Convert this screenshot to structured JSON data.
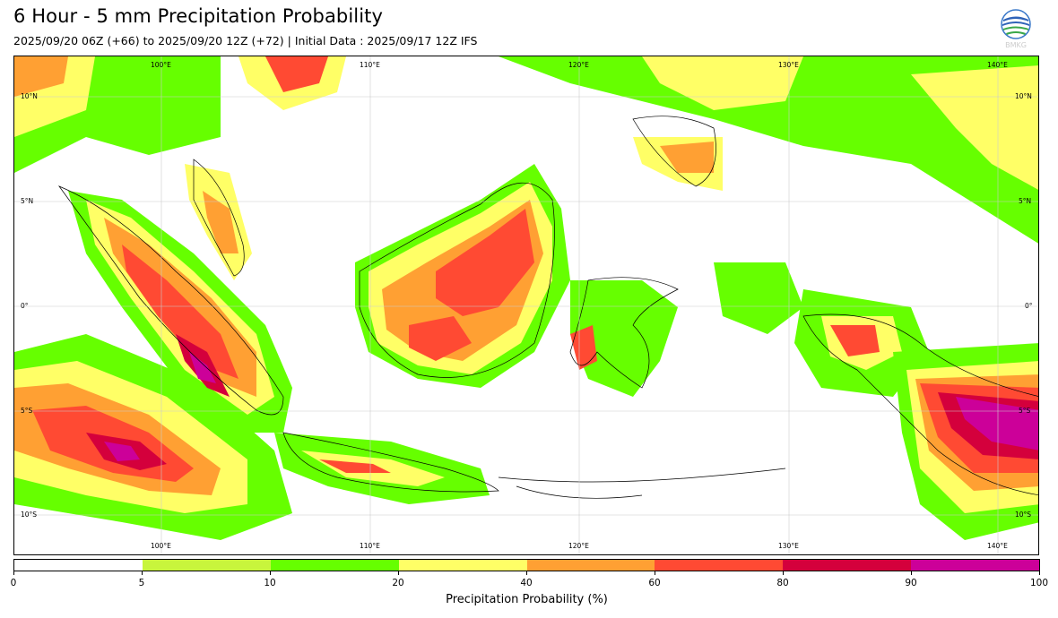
{
  "header": {
    "title": "6 Hour - 5 mm Precipitation Probability",
    "subtitle": "2025/09/20 06Z (+66) to 2025/09/20 12Z (+72) | Initial Data : 2025/09/17 12Z IFS",
    "logo_text": "BMKG"
  },
  "map": {
    "lon_labels_top": [
      "100°E",
      "110°E",
      "120°E",
      "130°E",
      "140°E"
    ],
    "lon_labels_bottom": [
      "100°E",
      "110°E",
      "120°E",
      "130°E",
      "140°E"
    ],
    "lat_labels_left": [
      "10°N",
      "5°N",
      "0°",
      "5°S",
      "10°S"
    ],
    "lat_labels_right": [
      "10°N",
      "5°N",
      "0°",
      "5°S",
      "10°S"
    ],
    "lon_values": [
      100,
      110,
      120,
      130,
      140
    ],
    "lat_values": [
      10,
      5,
      0,
      -5,
      -10
    ],
    "extent": {
      "lon_min": 93.5,
      "lon_max": 142.7,
      "lat_min": -12.1,
      "lat_max": 11.9
    }
  },
  "legend": {
    "title": "Precipitation Probability (%)",
    "tick_labels": [
      "0",
      "5",
      "10",
      "20",
      "40",
      "60",
      "80",
      "90",
      "100"
    ],
    "colors": [
      "#ffffff",
      "#c8f53c",
      "#66ff00",
      "#ffff66",
      "#ffa033",
      "#ff4a33",
      "#d4003c",
      "#cc0099"
    ]
  }
}
